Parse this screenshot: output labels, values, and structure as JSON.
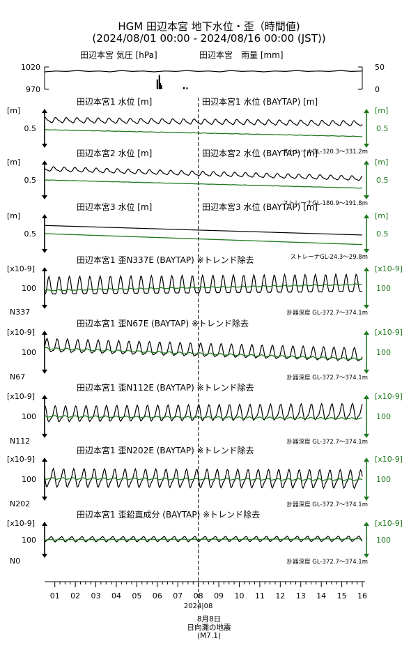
{
  "figure": {
    "title": "HGM 田辺本宮 地下水位・歪（時間値)",
    "subtitle": "(2024/08/01 00:00 - 2024/08/16 00:00 (JST))"
  },
  "colors": {
    "primary": "#000000",
    "secondary": "#1f7a1f",
    "event_line": "#000000"
  },
  "event": {
    "date_label": "8月8日",
    "name": "日向灘の地震",
    "magnitude": "(M7.1)",
    "day": 8.0
  },
  "chart_data": [
    {
      "id": "weather",
      "type": "line",
      "left_title": "田辺本宮 気圧 [hPa]",
      "right_title": "田辺本宮　雨量 [mm]",
      "left_ticks": [
        "1020",
        "970"
      ],
      "right_ticks": [
        "50",
        "0"
      ],
      "ylim": [
        970,
        1020
      ],
      "y2lim": [
        0,
        50
      ],
      "series": [
        {
          "axis": "left",
          "style": "line",
          "values": [
            1009,
            1011,
            1010,
            1012,
            1010,
            1011,
            1009,
            1012,
            1010,
            1011,
            1009,
            1011,
            1010,
            1012,
            1010,
            1011,
            1009,
            1012,
            1010,
            1011,
            1009,
            1011,
            1010,
            1012,
            1010,
            1011,
            1010,
            1012,
            1010,
            1011
          ]
        },
        {
          "axis": "right",
          "style": "bars",
          "x": [
            6.0,
            6.1,
            6.15,
            6.2,
            7.3,
            7.45
          ],
          "values": [
            22,
            32,
            14,
            9,
            5,
            4
          ]
        }
      ]
    },
    {
      "id": "water1",
      "type": "line",
      "left_title": "田辺本宮1 水位 [m]",
      "right_title": "田辺本宮1 水位 (BAYTAP) [m]",
      "unit_left": "[m]",
      "unit_right": "[m]",
      "tick_left": "0.5",
      "tick_right": "0.5",
      "note": "ストレーナGL-320.3～331.2m",
      "series": [
        {
          "color": "primary",
          "base": [
            0.62,
            0.57
          ],
          "amp": 0.045,
          "period": 0.52
        },
        {
          "color": "secondary",
          "base": [
            0.48,
            0.38
          ],
          "amp": 0.003,
          "period": 0.52
        }
      ]
    },
    {
      "id": "water2",
      "type": "line",
      "left_title": "田辺本宮2 水位 [m]",
      "right_title": "田辺本宮2 水位 (BAYTAP) [m]",
      "unit_left": "[m]",
      "unit_right": "[m]",
      "tick_left": "0.5",
      "tick_right": "0.5",
      "note": "ストレーナGL-180.9～191.8m",
      "series": [
        {
          "color": "primary",
          "base": [
            0.66,
            0.52
          ],
          "amp": 0.04,
          "period": 0.52
        },
        {
          "color": "secondary",
          "base": [
            0.5,
            0.38
          ],
          "amp": 0.002,
          "period": 0.52
        }
      ]
    },
    {
      "id": "water3",
      "type": "line",
      "left_title": "田辺本宮3 水位 [m]",
      "right_title": "田辺本宮3 水位 (BAYTAP) [m]",
      "unit_left": "[m]",
      "unit_right": "[m]",
      "tick_left": "0.5",
      "tick_right": "0.5",
      "note": "ストレーナGL-24.3～29.8m",
      "series": [
        {
          "color": "primary",
          "base": [
            0.62,
            0.48
          ],
          "amp": 0.0,
          "period": 0.52
        },
        {
          "color": "secondary",
          "base": [
            0.5,
            0.34
          ],
          "amp": 0.0,
          "period": 0.52
        }
      ]
    },
    {
      "id": "strain_n337",
      "type": "line",
      "title": "田辺本宮1 歪N337E (BAYTAP) ※トレンド除去",
      "unit_left": "[x10-9]",
      "unit_right": "[x10-9]",
      "tick_left": "100",
      "tick_right": "100",
      "component": "N337",
      "note": "計器深度 GL-372.7～374.1m",
      "series": [
        {
          "color": "primary",
          "base": [
            100,
            108
          ],
          "amp": 38,
          "period": 0.5
        },
        {
          "color": "secondary",
          "base": [
            92,
            112
          ],
          "amp": 2,
          "period": 0.5
        }
      ]
    },
    {
      "id": "strain_n67",
      "type": "line",
      "title": "田辺本宮1 歪N67E (BAYTAP) ※トレンド除去",
      "unit_left": "[x10-9]",
      "unit_right": "[x10-9]",
      "tick_left": "100",
      "tick_right": "100",
      "component": "N67",
      "note": "計器深度 GL-372.7～374.1m",
      "series": [
        {
          "color": "primary",
          "base": [
            118,
            88
          ],
          "amp": 26,
          "period": 0.5
        },
        {
          "color": "secondary",
          "base": [
            112,
            78
          ],
          "amp": 3,
          "period": 0.5
        }
      ]
    },
    {
      "id": "strain_n112",
      "type": "line",
      "title": "田辺本宮1 歪N112E (BAYTAP) ※トレンド除去",
      "unit_left": "[x10-9]",
      "unit_right": "[x10-9]",
      "tick_left": "100",
      "tick_right": "100",
      "component": "N112",
      "note": "計器深度 GL-372.7～374.1m",
      "series": [
        {
          "color": "primary",
          "base": [
            104,
            112
          ],
          "amp": 30,
          "period": 0.5
        },
        {
          "color": "secondary",
          "base": [
            100,
            93
          ],
          "amp": 3,
          "period": 0.5
        }
      ]
    },
    {
      "id": "strain_n202",
      "type": "line",
      "title": "田辺本宮1 歪N202E (BAYTAP) ※トレンド除去",
      "unit_left": "[x10-9]",
      "unit_right": "[x10-9]",
      "tick_left": "100",
      "tick_right": "100",
      "component": "N202",
      "note": "計器深度 GL-372.7～374.1m",
      "series": [
        {
          "color": "primary",
          "base": [
            102,
            98
          ],
          "amp": 34,
          "period": 0.5
        },
        {
          "color": "secondary",
          "base": [
            102,
            98
          ],
          "amp": 3,
          "period": 0.5
        }
      ]
    },
    {
      "id": "strain_vertical",
      "type": "line",
      "title": "田辺本宮1 歪鉛直成分 (BAYTAP) ※トレンド除去",
      "unit_left": "[x10-9]",
      "unit_right": "[x10-9]",
      "tick_left": "100",
      "tick_right": "100",
      "component": "N0",
      "note": "計器深度 GL-372.7～374.1m",
      "series": [
        {
          "color": "primary",
          "base": [
            102,
            104
          ],
          "amp": 12,
          "period": 0.5
        },
        {
          "color": "secondary",
          "base": [
            100,
            103
          ],
          "amp": 1.5,
          "period": 0.5
        }
      ]
    }
  ],
  "x_axis": {
    "tick_labels": [
      "01",
      "02",
      "03",
      "04",
      "05",
      "06",
      "07",
      "08",
      "09",
      "10",
      "11",
      "12",
      "13",
      "14",
      "15",
      "16"
    ],
    "month_label": "2024|08"
  }
}
